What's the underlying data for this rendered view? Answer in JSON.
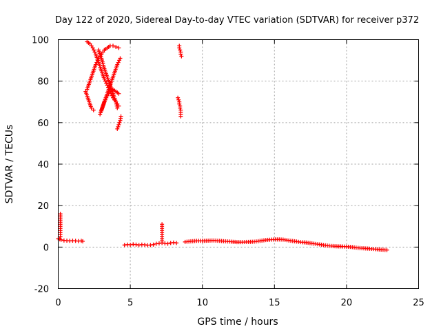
{
  "chart_data": {
    "type": "scatter",
    "title": "Day 122 of 2020, Sidereal Day-to-day VTEC variation (SDTVAR) for receiver p372",
    "xlabel": "GPS time / hours",
    "ylabel": "SDTVAR / TECUs",
    "xlim": [
      0,
      25
    ],
    "ylim": [
      -20,
      100
    ],
    "xticks": [
      0,
      5,
      10,
      15,
      20,
      25
    ],
    "yticks": [
      -20,
      0,
      20,
      40,
      60,
      80,
      100
    ],
    "xtick_labels": [
      "0",
      "5",
      "10",
      "15",
      "20",
      "25"
    ],
    "ytick_labels": [
      "-20",
      "0",
      "20",
      "40",
      "60",
      "80",
      "100"
    ],
    "grid": true,
    "marker": "+",
    "color": "#ff0000",
    "series": [
      {
        "name": "SDTVAR",
        "segments": [
          {
            "note": "near-zero cluster start",
            "points": [
              [
                0.0,
                4
              ],
              [
                0.1,
                3.8
              ],
              [
                0.2,
                3.5
              ],
              [
                0.4,
                3.2
              ],
              [
                0.6,
                3.1
              ],
              [
                0.8,
                3.0
              ],
              [
                1.0,
                3.1
              ],
              [
                1.2,
                3.0
              ],
              [
                1.4,
                2.9
              ],
              [
                1.6,
                3.0
              ],
              [
                1.7,
                2.8
              ]
            ]
          },
          {
            "note": "spike near 0.2h",
            "points": [
              [
                0.15,
                16
              ],
              [
                0.15,
                15
              ],
              [
                0.15,
                14
              ],
              [
                0.15,
                13
              ],
              [
                0.15,
                12
              ],
              [
                0.15,
                11
              ],
              [
                0.15,
                10
              ],
              [
                0.15,
                9
              ],
              [
                0.15,
                8
              ],
              [
                0.15,
                7
              ],
              [
                0.15,
                6
              ],
              [
                0.15,
                5
              ]
            ]
          },
          {
            "note": "arc 1",
            "points": [
              [
                1.9,
                75
              ],
              [
                2.1,
                71
              ],
              [
                2.3,
                67
              ],
              [
                2.45,
                66
              ]
            ]
          },
          {
            "note": "arc 2 descending from top",
            "points": [
              [
                2.0,
                99
              ],
              [
                2.2,
                98
              ],
              [
                2.4,
                96
              ],
              [
                2.6,
                93
              ],
              [
                2.8,
                89
              ],
              [
                3.0,
                85
              ],
              [
                3.2,
                81
              ],
              [
                3.4,
                78
              ],
              [
                3.6,
                75
              ],
              [
                3.8,
                72
              ],
              [
                4.0,
                70
              ],
              [
                4.2,
                68
              ]
            ]
          },
          {
            "note": "arc 3 rising",
            "points": [
              [
                2.0,
                76
              ],
              [
                2.2,
                80
              ],
              [
                2.4,
                84
              ],
              [
                2.6,
                88
              ],
              [
                2.8,
                91
              ],
              [
                3.0,
                93
              ],
              [
                3.2,
                95
              ],
              [
                3.4,
                96
              ],
              [
                3.6,
                97
              ],
              [
                3.8,
                97
              ],
              [
                4.0,
                96.5
              ],
              [
                4.2,
                96
              ]
            ]
          },
          {
            "note": "arc 4",
            "points": [
              [
                2.9,
                64
              ],
              [
                3.1,
                68
              ],
              [
                3.3,
                72
              ],
              [
                3.5,
                76
              ],
              [
                3.7,
                80
              ],
              [
                3.9,
                84
              ],
              [
                4.1,
                88
              ],
              [
                4.3,
                91
              ]
            ]
          },
          {
            "note": "arc 5",
            "points": [
              [
                3.0,
                66
              ],
              [
                3.2,
                70
              ],
              [
                3.4,
                73
              ],
              [
                3.6,
                75
              ],
              [
                3.8,
                76
              ],
              [
                4.0,
                75
              ],
              [
                4.2,
                74
              ]
            ]
          },
          {
            "note": "arc 6 descending",
            "points": [
              [
                2.8,
                95
              ],
              [
                3.0,
                91
              ],
              [
                3.2,
                86
              ],
              [
                3.4,
                82
              ],
              [
                3.6,
                78
              ],
              [
                3.8,
                74
              ],
              [
                4.0,
                70
              ],
              [
                4.1,
                67
              ]
            ]
          },
          {
            "note": "arc 7 low",
            "points": [
              [
                4.1,
                57
              ],
              [
                4.2,
                59
              ],
              [
                4.3,
                61
              ],
              [
                4.35,
                63
              ]
            ]
          },
          {
            "note": "cluster near 8.4h high",
            "points": [
              [
                8.4,
                97
              ],
              [
                8.4,
                96
              ],
              [
                8.45,
                95
              ],
              [
                8.5,
                94
              ],
              [
                8.5,
                93
              ],
              [
                8.55,
                92
              ]
            ]
          },
          {
            "note": "cluster near 8.4h mid",
            "points": [
              [
                8.3,
                72
              ],
              [
                8.35,
                71
              ],
              [
                8.4,
                70
              ],
              [
                8.4,
                69
              ],
              [
                8.45,
                68
              ],
              [
                8.45,
                67
              ],
              [
                8.5,
                66
              ],
              [
                8.5,
                65
              ],
              [
                8.5,
                63
              ]
            ]
          },
          {
            "note": "near-zero 4.6-6.6h",
            "points": [
              [
                4.6,
                1
              ],
              [
                4.8,
                1.2
              ],
              [
                5.0,
                1.1
              ],
              [
                5.2,
                1.3
              ],
              [
                5.4,
                1.2
              ],
              [
                5.6,
                1.0
              ],
              [
                5.8,
                1.2
              ],
              [
                6.0,
                1.1
              ],
              [
                6.2,
                0.9
              ],
              [
                6.4,
                1.0
              ],
              [
                6.6,
                1.2
              ]
            ]
          },
          {
            "note": "near-zero 6.8-8.2h",
            "points": [
              [
                6.8,
                1.6
              ],
              [
                7.0,
                1.8
              ],
              [
                7.2,
                2.0
              ],
              [
                7.4,
                1.8
              ],
              [
                7.6,
                1.6
              ],
              [
                7.8,
                2.0
              ],
              [
                8.0,
                2.2
              ],
              [
                8.2,
                2.0
              ]
            ]
          },
          {
            "note": "spike near 7.2h",
            "points": [
              [
                7.2,
                11
              ],
              [
                7.2,
                10
              ],
              [
                7.2,
                9
              ],
              [
                7.2,
                8
              ],
              [
                7.2,
                7
              ],
              [
                7.2,
                6
              ],
              [
                7.2,
                5
              ],
              [
                7.2,
                4
              ],
              [
                7.2,
                3
              ]
            ]
          },
          {
            "note": "near-zero 8.8-22.8h",
            "points": [
              [
                8.8,
                2.5
              ],
              [
                9.2,
                2.8
              ],
              [
                9.6,
                3.0
              ],
              [
                10.0,
                3.0
              ],
              [
                10.4,
                3.1
              ],
              [
                10.8,
                3.2
              ],
              [
                11.2,
                3.0
              ],
              [
                11.6,
                2.8
              ],
              [
                12.0,
                2.6
              ],
              [
                12.4,
                2.4
              ],
              [
                12.8,
                2.4
              ],
              [
                13.2,
                2.5
              ],
              [
                13.6,
                2.6
              ],
              [
                14.0,
                3.0
              ],
              [
                14.4,
                3.4
              ],
              [
                14.8,
                3.6
              ],
              [
                15.2,
                3.7
              ],
              [
                15.6,
                3.6
              ],
              [
                16.0,
                3.2
              ],
              [
                16.4,
                2.8
              ],
              [
                16.8,
                2.4
              ],
              [
                17.2,
                2.2
              ],
              [
                17.6,
                1.8
              ],
              [
                18.0,
                1.4
              ],
              [
                18.4,
                1.0
              ],
              [
                18.8,
                0.6
              ],
              [
                19.2,
                0.4
              ],
              [
                19.6,
                0.3
              ],
              [
                20.0,
                0.2
              ],
              [
                20.4,
                0.0
              ],
              [
                20.8,
                -0.4
              ],
              [
                21.2,
                -0.6
              ],
              [
                21.6,
                -0.8
              ],
              [
                22.0,
                -1.0
              ],
              [
                22.4,
                -1.2
              ],
              [
                22.8,
                -1.4
              ]
            ]
          }
        ]
      }
    ]
  }
}
